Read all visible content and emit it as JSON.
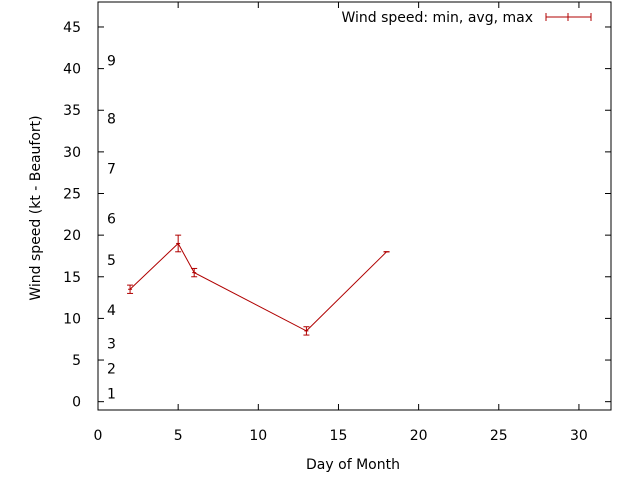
{
  "chart_data": {
    "type": "line",
    "title": "",
    "xlabel": "Day of Month",
    "ylabel": "Wind speed (kt - Beaufort)",
    "xlim": [
      0,
      32
    ],
    "ylim": [
      -1,
      48
    ],
    "x_ticks": [
      0,
      5,
      10,
      15,
      20,
      25,
      30
    ],
    "y_ticks": [
      0,
      5,
      10,
      15,
      20,
      25,
      30,
      35,
      40,
      45
    ],
    "beaufort_labels": [
      {
        "label": "1",
        "value": 1
      },
      {
        "label": "2",
        "value": 4
      },
      {
        "label": "3",
        "value": 7
      },
      {
        "label": "4",
        "value": 11
      },
      {
        "label": "5",
        "value": 17
      },
      {
        "label": "6",
        "value": 22
      },
      {
        "label": "7",
        "value": 28
      },
      {
        "label": "8",
        "value": 34
      },
      {
        "label": "9",
        "value": 41
      }
    ],
    "legend_position": "top-right",
    "series": [
      {
        "name": "Wind speed: min, avg, max",
        "color": "#b00000",
        "points": [
          {
            "x": 2,
            "y": 13.5,
            "min": 13.0,
            "max": 14.0
          },
          {
            "x": 5,
            "y": 19.0,
            "min": 18.0,
            "max": 20.0
          },
          {
            "x": 6,
            "y": 15.5,
            "min": 15.0,
            "max": 16.0
          },
          {
            "x": 13,
            "y": 8.5,
            "min": 8.0,
            "max": 9.0
          },
          {
            "x": 18,
            "y": 18.0,
            "min": 18.0,
            "max": 18.0
          }
        ]
      }
    ]
  }
}
